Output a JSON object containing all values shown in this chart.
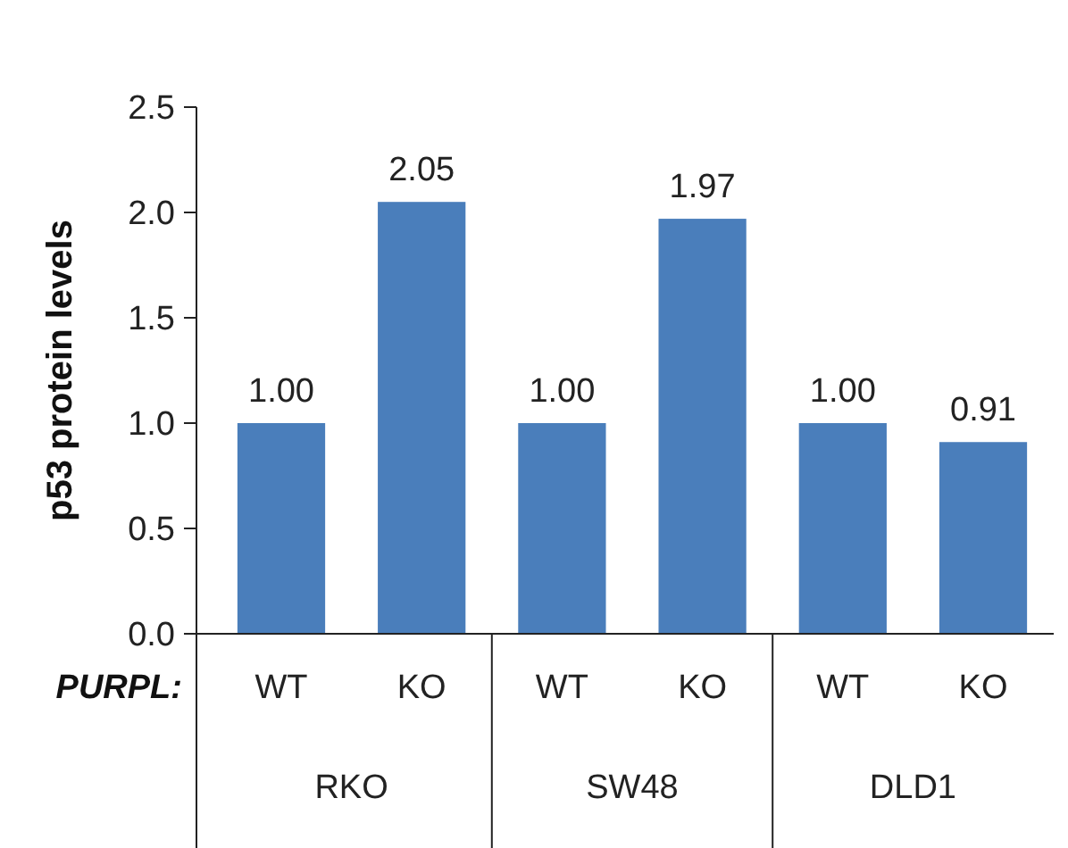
{
  "chart_data": {
    "type": "bar",
    "ylabel": "p53 protein levels",
    "categories": [
      "WT",
      "KO",
      "WT",
      "KO",
      "WT",
      "KO"
    ],
    "values": [
      1.0,
      2.05,
      1.0,
      1.97,
      1.0,
      0.91
    ],
    "color": "#4a7ebb",
    "ylim": [
      0,
      2.5
    ],
    "yticks": [
      {
        "value": 0,
        "label": "0.0"
      },
      {
        "value": 0.5,
        "label": "0.5"
      },
      {
        "value": 1,
        "label": "1.0"
      },
      {
        "value": 1.5,
        "label": "1.5"
      },
      {
        "value": 2,
        "label": "2.0"
      },
      {
        "value": 2.5,
        "label": "2.5"
      }
    ],
    "value_labels": [
      "1.00",
      "2.05",
      "1.00",
      "1.97",
      "1.00",
      "0.91"
    ],
    "annotations": [
      "PURPL:",
      "RKO",
      "SW48",
      "DLD1"
    ],
    "grid": false
  }
}
